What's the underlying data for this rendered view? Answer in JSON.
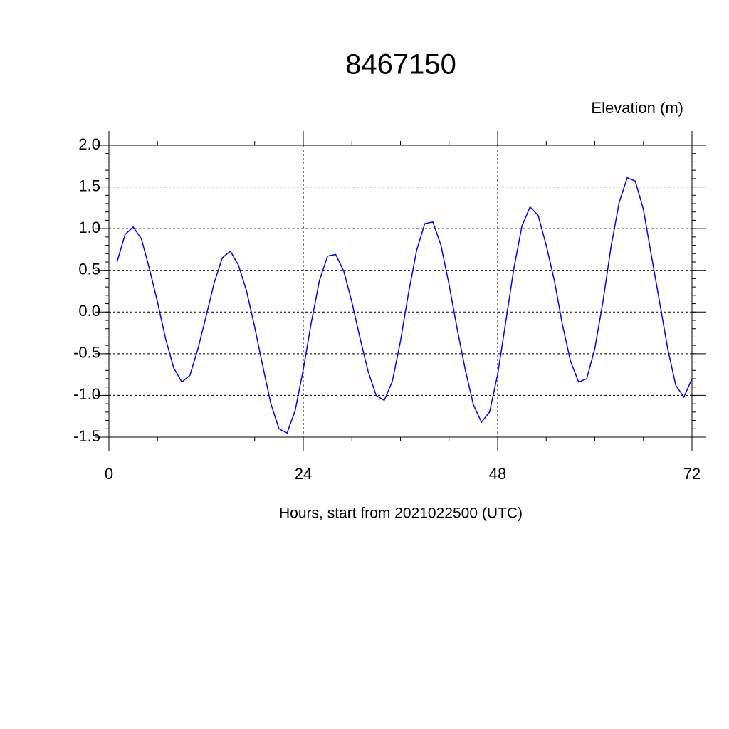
{
  "chart_data": {
    "type": "line",
    "title": "8467150",
    "ylabel": "Elevation (m)",
    "xlabel": "Hours, start from 2021022500 (UTC)",
    "x": [
      1,
      2,
      3,
      4,
      5,
      6,
      7,
      8,
      9,
      10,
      11,
      12,
      13,
      14,
      15,
      16,
      17,
      18,
      19,
      20,
      21,
      22,
      23,
      24,
      25,
      26,
      27,
      28,
      29,
      30,
      31,
      32,
      33,
      34,
      35,
      36,
      37,
      38,
      39,
      40,
      41,
      42,
      43,
      44,
      45,
      46,
      47,
      48,
      49,
      50,
      51,
      52,
      53,
      54,
      55,
      56,
      57,
      58,
      59,
      60,
      61,
      62,
      63,
      64,
      65,
      66,
      67,
      68,
      69,
      70,
      71,
      72
    ],
    "series": [
      {
        "color": "#0000ff",
        "values": [
          0.6,
          0.93,
          1.02,
          0.88,
          0.52,
          0.12,
          -0.32,
          -0.67,
          -0.84,
          -0.76,
          -0.44,
          -0.05,
          0.35,
          0.65,
          0.73,
          0.56,
          0.25,
          -0.18,
          -0.65,
          -1.1,
          -1.4,
          -1.45,
          -1.18,
          -0.69,
          -0.12,
          0.38,
          0.67,
          0.69,
          0.49,
          0.12,
          -0.31,
          -0.71,
          -1.0,
          -1.06,
          -0.83,
          -0.35,
          0.23,
          0.74,
          1.06,
          1.08,
          0.8,
          0.33,
          -0.2,
          -0.69,
          -1.11,
          -1.32,
          -1.2,
          -0.75,
          -0.12,
          0.52,
          1.03,
          1.26,
          1.16,
          0.8,
          0.38,
          -0.15,
          -0.59,
          -0.84,
          -0.8,
          -0.44,
          0.12,
          0.78,
          1.31,
          1.61,
          1.57,
          1.23,
          0.67,
          0.12,
          -0.44,
          -0.88,
          -1.02,
          -0.8
        ]
      }
    ],
    "xlim": [
      0,
      72
    ],
    "xticks": [
      0,
      24,
      48,
      72
    ],
    "ylim": [
      -1.5,
      2.0
    ],
    "yticks": [
      -1.5,
      {
        "value": -1,
        "label": "-1.0"
      },
      -0.5,
      {
        "value": 0,
        "label": "0.0"
      },
      0.5,
      {
        "value": 1,
        "label": "1.0"
      },
      1.5,
      {
        "value": 2,
        "label": "2.0"
      }
    ],
    "grid": true
  }
}
